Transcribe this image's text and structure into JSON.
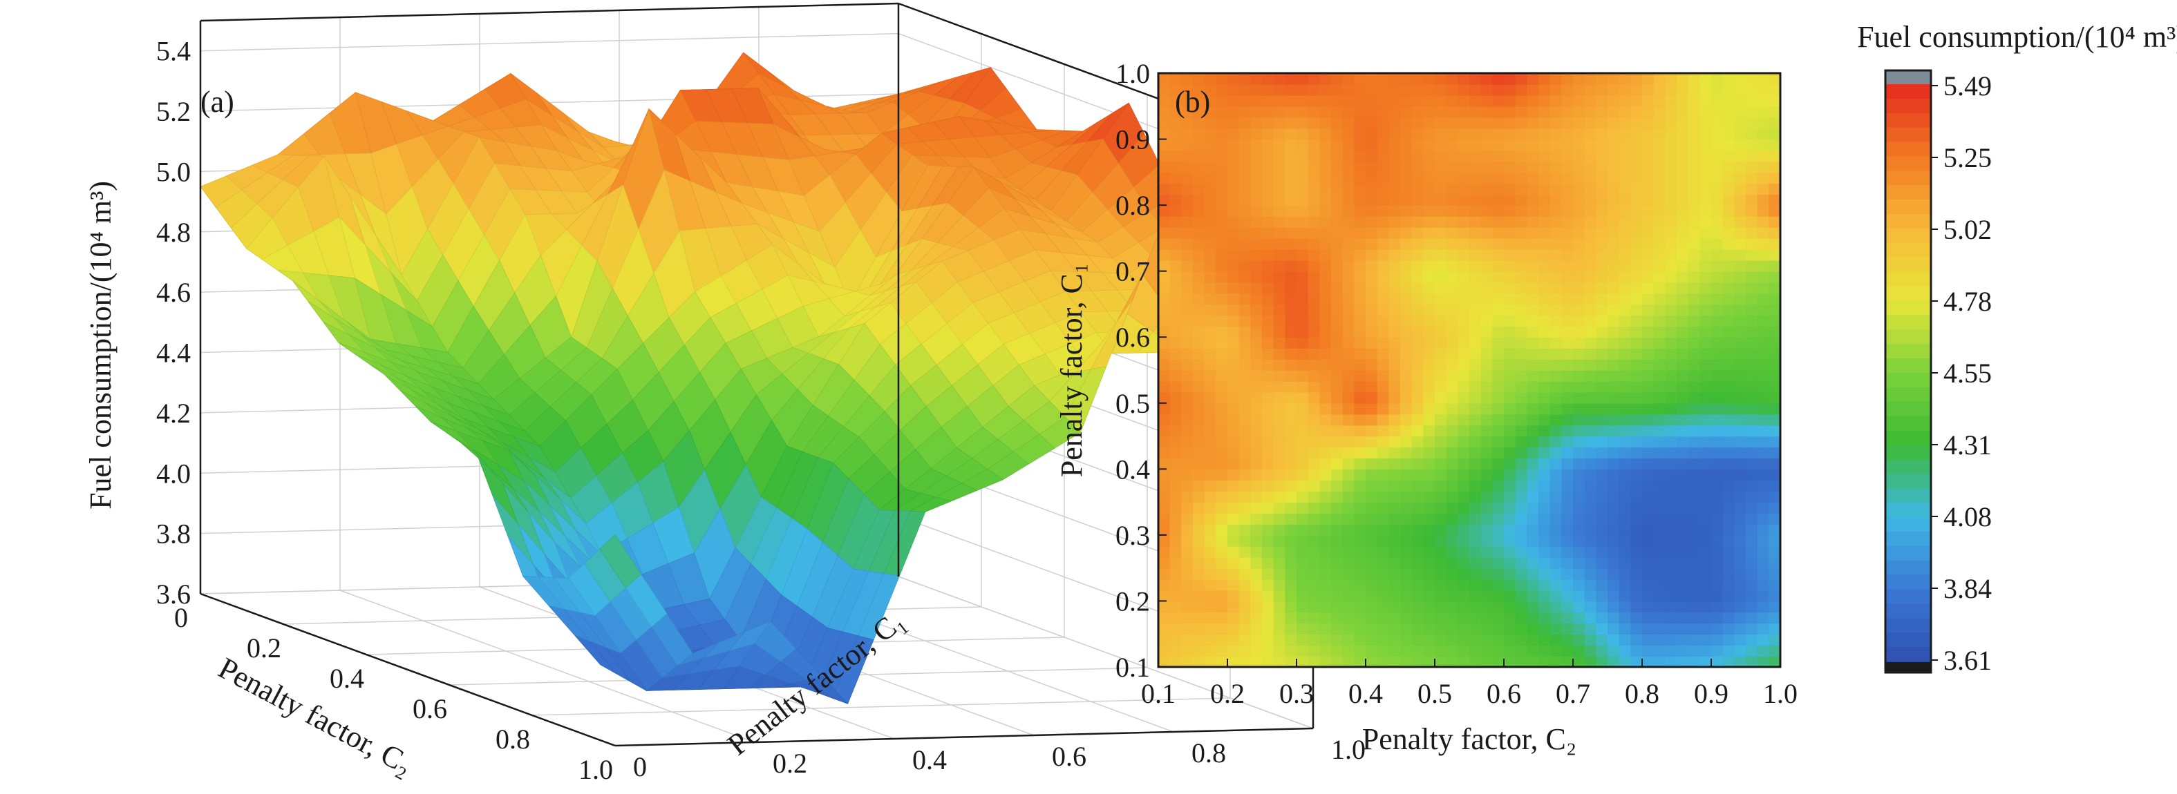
{
  "figure": {
    "panels": [
      "(a)",
      "(b)"
    ]
  },
  "colorbar": {
    "title": "Fuel consumption/(10⁴ m³)",
    "ticks": [
      "5.49",
      "5.25",
      "5.02",
      "4.78",
      "4.55",
      "4.31",
      "4.08",
      "3.84",
      "3.61"
    ],
    "min": 3.61,
    "max": 5.49,
    "top_color": "#7f8c99",
    "bottom_color": "#1a1a1a",
    "colormap": [
      "#2f4fb0",
      "#3a79d4",
      "#3fb8e6",
      "#3dba35",
      "#7cd23a",
      "#e9e53a",
      "#f7b93a",
      "#f27a22",
      "#e52a1f"
    ]
  },
  "chart_data": [
    {
      "type": "surface",
      "panel_label": "(a)",
      "zlabel": "Fuel consumption/(10⁴ m³)",
      "xlabel": "Penalty factor, C₂",
      "ylabel": "Penalty factor, C₁",
      "x_ticks": [
        "0",
        "0.2",
        "0.4",
        "0.6",
        "0.8",
        "1.0"
      ],
      "y_ticks": [
        "0",
        "0.2",
        "0.4",
        "0.6",
        "0.8",
        "1.0"
      ],
      "z_ticks": [
        "3.6",
        "3.8",
        "4.0",
        "4.2",
        "4.4",
        "4.6",
        "4.8",
        "5.0",
        "5.2",
        "5.4"
      ],
      "zlim": [
        3.6,
        5.5
      ],
      "grid": true,
      "x": [
        0.1,
        0.2,
        0.3,
        0.4,
        0.5,
        0.6,
        0.7,
        0.8,
        0.9,
        1.0
      ],
      "y": [
        0.1,
        0.2,
        0.3,
        0.4,
        0.5,
        0.6,
        0.7,
        0.8,
        0.9,
        1.0
      ],
      "z": [
        [
          4.95,
          4.8,
          4.75,
          4.6,
          4.55,
          4.45,
          4.4,
          4.05,
          4.1,
          4.3
        ],
        [
          5.05,
          5.1,
          4.55,
          4.5,
          4.4,
          4.35,
          4.1,
          3.75,
          3.72,
          3.9
        ],
        [
          5.25,
          4.7,
          4.5,
          4.4,
          4.3,
          4.1,
          3.85,
          3.7,
          3.72,
          4.0
        ],
        [
          5.15,
          5.15,
          4.95,
          4.6,
          4.55,
          4.3,
          3.9,
          3.75,
          3.72,
          3.72
        ],
        [
          5.3,
          5.1,
          4.95,
          5.35,
          4.8,
          4.6,
          4.4,
          4.4,
          4.3,
          4.35
        ],
        [
          5.1,
          5.0,
          5.35,
          5.1,
          4.95,
          4.7,
          4.8,
          4.65,
          4.5,
          4.45
        ],
        [
          5.0,
          5.25,
          5.35,
          5.05,
          4.75,
          4.9,
          5.0,
          4.85,
          4.7,
          4.6
        ],
        [
          5.35,
          5.2,
          5.05,
          5.25,
          5.2,
          5.25,
          5.1,
          4.95,
          4.8,
          5.25
        ],
        [
          5.15,
          5.2,
          5.05,
          5.3,
          5.15,
          5.1,
          5.05,
          4.95,
          4.8,
          4.7
        ],
        [
          5.2,
          5.3,
          5.4,
          5.25,
          5.3,
          5.45,
          5.2,
          5.1,
          4.75,
          4.85
        ]
      ]
    },
    {
      "type": "heatmap",
      "panel_label": "(b)",
      "xlabel": "Penalty factor, C₂",
      "ylabel": "Penalty factor, C₁",
      "x_ticks": [
        "0.1",
        "0.2",
        "0.3",
        "0.4",
        "0.5",
        "0.6",
        "0.7",
        "0.8",
        "0.9",
        "1.0"
      ],
      "y_ticks": [
        "0.1",
        "0.2",
        "0.3",
        "0.4",
        "0.5",
        "0.6",
        "0.7",
        "0.8",
        "0.9",
        "1.0"
      ],
      "xlim": [
        0.1,
        1.0
      ],
      "ylim": [
        0.1,
        1.0
      ],
      "x": [
        0.1,
        0.2,
        0.3,
        0.4,
        0.5,
        0.6,
        0.7,
        0.8,
        0.9,
        1.0
      ],
      "y": [
        0.1,
        0.2,
        0.3,
        0.4,
        0.5,
        0.6,
        0.7,
        0.8,
        0.9,
        1.0
      ],
      "z": [
        [
          4.95,
          4.8,
          4.75,
          4.6,
          4.55,
          4.45,
          4.4,
          4.05,
          4.1,
          4.3
        ],
        [
          5.05,
          5.1,
          4.55,
          4.5,
          4.4,
          4.35,
          4.1,
          3.75,
          3.72,
          3.9
        ],
        [
          5.25,
          4.7,
          4.5,
          4.4,
          4.3,
          4.1,
          3.85,
          3.7,
          3.72,
          4.0
        ],
        [
          5.15,
          5.15,
          4.95,
          4.6,
          4.55,
          4.3,
          3.9,
          3.75,
          3.72,
          3.72
        ],
        [
          5.3,
          5.1,
          4.95,
          5.35,
          4.8,
          4.6,
          4.4,
          4.4,
          4.3,
          4.35
        ],
        [
          5.1,
          5.0,
          5.35,
          5.1,
          4.95,
          4.7,
          4.8,
          4.65,
          4.5,
          4.45
        ],
        [
          5.0,
          5.25,
          5.35,
          5.05,
          4.75,
          4.9,
          5.0,
          4.85,
          4.7,
          4.6
        ],
        [
          5.35,
          5.2,
          5.05,
          5.25,
          5.2,
          5.25,
          5.1,
          4.95,
          4.8,
          5.25
        ],
        [
          5.15,
          5.2,
          5.05,
          5.3,
          5.15,
          5.1,
          5.05,
          4.95,
          4.8,
          4.7
        ],
        [
          5.2,
          5.3,
          5.4,
          5.25,
          5.3,
          5.45,
          5.2,
          5.1,
          4.75,
          4.85
        ]
      ]
    }
  ]
}
